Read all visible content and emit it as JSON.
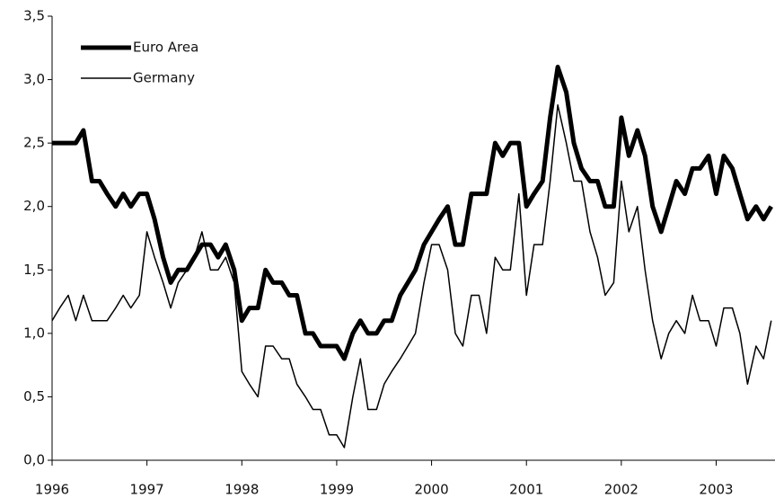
{
  "chart_data": {
    "type": "line",
    "x": [
      1996,
      1996.08,
      1996.17,
      1996.25,
      1996.33,
      1996.42,
      1996.5,
      1996.58,
      1996.67,
      1996.75,
      1996.83,
      1996.92,
      1997,
      1997.08,
      1997.17,
      1997.25,
      1997.33,
      1997.42,
      1997.5,
      1997.58,
      1997.67,
      1997.75,
      1997.83,
      1997.92,
      1998,
      1998.08,
      1998.17,
      1998.25,
      1998.33,
      1998.42,
      1998.5,
      1998.58,
      1998.67,
      1998.75,
      1998.83,
      1998.92,
      1999,
      1999.08,
      1999.17,
      1999.25,
      1999.33,
      1999.42,
      1999.5,
      1999.58,
      1999.67,
      1999.75,
      1999.83,
      1999.92,
      2000,
      2000.08,
      2000.17,
      2000.25,
      2000.33,
      2000.42,
      2000.5,
      2000.58,
      2000.67,
      2000.75,
      2000.83,
      2000.92,
      2001,
      2001.08,
      2001.17,
      2001.25,
      2001.33,
      2001.42,
      2001.5,
      2001.58,
      2001.67,
      2001.75,
      2001.83,
      2001.92,
      2002,
      2002.08,
      2002.17,
      2002.25,
      2002.33,
      2002.42,
      2002.5,
      2002.58,
      2002.67,
      2002.75,
      2002.83,
      2002.92,
      2003,
      2003.08,
      2003.17,
      2003.25,
      2003.33,
      2003.42,
      2003.5,
      2003.58
    ],
    "series": [
      {
        "name": "Euro Area",
        "color": "#000000",
        "values": [
          2.5,
          2.5,
          2.5,
          2.5,
          2.6,
          2.2,
          2.2,
          2.1,
          2.0,
          2.1,
          2.0,
          2.1,
          2.1,
          1.9,
          1.6,
          1.4,
          1.5,
          1.5,
          1.6,
          1.7,
          1.7,
          1.6,
          1.7,
          1.5,
          1.1,
          1.2,
          1.2,
          1.5,
          1.4,
          1.4,
          1.3,
          1.3,
          1.0,
          1.0,
          0.9,
          0.9,
          0.9,
          0.8,
          1.0,
          1.1,
          1.0,
          1.0,
          1.1,
          1.1,
          1.3,
          1.4,
          1.5,
          1.7,
          1.8,
          1.9,
          2.0,
          1.7,
          1.7,
          2.1,
          2.1,
          2.1,
          2.5,
          2.4,
          2.5,
          2.5,
          2.0,
          2.1,
          2.2,
          2.7,
          3.1,
          2.9,
          2.5,
          2.3,
          2.2,
          2.2,
          2.0,
          2.0,
          2.7,
          2.4,
          2.6,
          2.4,
          2.0,
          1.8,
          2.0,
          2.2,
          2.1,
          2.3,
          2.3,
          2.4,
          2.1,
          2.4,
          2.3,
          2.1,
          1.9,
          2.0,
          1.9,
          2.0
        ]
      },
      {
        "name": "Germany",
        "color": "#000000",
        "values": [
          1.1,
          1.2,
          1.3,
          1.1,
          1.3,
          1.1,
          1.1,
          1.1,
          1.2,
          1.3,
          1.2,
          1.3,
          1.8,
          1.6,
          1.4,
          1.2,
          1.4,
          1.5,
          1.6,
          1.8,
          1.5,
          1.5,
          1.6,
          1.4,
          0.7,
          0.6,
          0.5,
          0.9,
          0.9,
          0.8,
          0.8,
          0.6,
          0.5,
          0.4,
          0.4,
          0.2,
          0.2,
          0.1,
          0.5,
          0.8,
          0.4,
          0.4,
          0.6,
          0.7,
          0.8,
          0.9,
          1.0,
          1.4,
          1.7,
          1.7,
          1.5,
          1.0,
          0.9,
          1.3,
          1.3,
          1.0,
          1.6,
          1.5,
          1.5,
          2.1,
          1.3,
          1.7,
          1.7,
          2.2,
          2.8,
          2.5,
          2.2,
          2.2,
          1.8,
          1.6,
          1.3,
          1.4,
          2.2,
          1.8,
          2.0,
          1.5,
          1.1,
          0.8,
          1.0,
          1.1,
          1.0,
          1.3,
          1.1,
          1.1,
          0.9,
          1.2,
          1.2,
          1.0,
          0.6,
          0.9,
          0.8,
          1.1
        ]
      }
    ],
    "xlim": [
      1996,
      2003.62
    ],
    "xticks": [
      1996,
      1997,
      1998,
      1999,
      2000,
      2001,
      2002,
      2003
    ],
    "ylim": [
      0,
      3.5
    ],
    "yticks": [
      {
        "value": 0,
        "label": "0,0"
      },
      {
        "value": 0.5,
        "label": "0,5"
      },
      {
        "value": 1,
        "label": "1,0"
      },
      {
        "value": 1.5,
        "label": "1,5"
      },
      {
        "value": 2,
        "label": "2,0"
      },
      {
        "value": 2.5,
        "label": "2,5"
      },
      {
        "value": 3,
        "label": "3,0"
      },
      {
        "value": 3.5,
        "label": "3,5"
      }
    ],
    "legend": "upper left"
  }
}
